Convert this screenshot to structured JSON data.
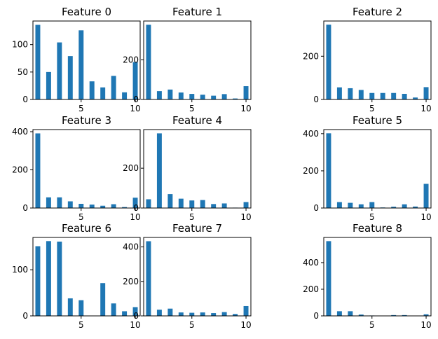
{
  "chart_data": [
    {
      "type": "bar",
      "title": "Feature 0",
      "xlabel": "",
      "ylabel": "",
      "x": [
        1,
        2,
        3,
        4,
        5,
        6,
        7,
        8,
        9,
        10
      ],
      "values": [
        136,
        50,
        104,
        79,
        126,
        33,
        22,
        43,
        13,
        68
      ],
      "xlim": [
        0.55,
        10.45
      ],
      "ylim": [
        0,
        143
      ],
      "xticks": [
        5,
        10
      ],
      "yticks": [
        0,
        50,
        100
      ],
      "grid": false
    },
    {
      "type": "bar",
      "title": "Feature 1",
      "xlabel": "",
      "ylabel": "",
      "x": [
        1,
        2,
        3,
        4,
        5,
        6,
        7,
        8,
        9,
        10
      ],
      "values": [
        377,
        42,
        50,
        35,
        28,
        24,
        19,
        27,
        5,
        67
      ],
      "xlim": [
        0.55,
        10.45
      ],
      "ylim": [
        0,
        396
      ],
      "xticks": [
        5,
        10
      ],
      "yticks": [
        0,
        200
      ],
      "grid": false
    },
    {
      "type": "bar",
      "title": "Feature 2",
      "xlabel": "",
      "ylabel": "",
      "x": [
        1,
        2,
        3,
        4,
        5,
        6,
        7,
        8,
        9,
        10
      ],
      "values": [
        346,
        56,
        52,
        44,
        30,
        30,
        30,
        26,
        9,
        57
      ],
      "xlim": [
        0.55,
        10.45
      ],
      "ylim": [
        0,
        363
      ],
      "xticks": [
        5,
        10
      ],
      "yticks": [
        0,
        200
      ],
      "grid": false
    },
    {
      "type": "bar",
      "title": "Feature 3",
      "xlabel": "",
      "ylabel": "",
      "x": [
        1,
        2,
        3,
        4,
        5,
        6,
        7,
        8,
        9,
        10
      ],
      "values": [
        391,
        56,
        56,
        35,
        22,
        18,
        12,
        20,
        5,
        54
      ],
      "xlim": [
        0.55,
        10.45
      ],
      "ylim": [
        0,
        411
      ],
      "xticks": [
        5,
        10
      ],
      "yticks": [
        0,
        200,
        400
      ],
      "grid": false
    },
    {
      "type": "bar",
      "title": "Feature 4",
      "xlabel": "",
      "ylabel": "",
      "x": [
        1,
        2,
        3,
        4,
        5,
        6,
        7,
        8,
        9,
        10
      ],
      "values": [
        44,
        375,
        70,
        47,
        38,
        40,
        20,
        23,
        2,
        30
      ],
      "xlim": [
        0.55,
        10.45
      ],
      "ylim": [
        0,
        394
      ],
      "xticks": [
        5,
        10
      ],
      "yticks": [
        0,
        200
      ],
      "grid": false
    },
    {
      "type": "bar",
      "title": "Feature 5",
      "xlabel": "",
      "ylabel": "",
      "x": [
        1,
        2,
        3,
        4,
        5,
        6,
        7,
        8,
        9,
        10
      ],
      "values": [
        402,
        32,
        28,
        20,
        32,
        3,
        7,
        20,
        8,
        130
      ],
      "xlim": [
        0.55,
        10.45
      ],
      "ylim": [
        0,
        422
      ],
      "xticks": [
        5,
        10
      ],
      "yticks": [
        0,
        200,
        400
      ],
      "grid": false
    },
    {
      "type": "bar",
      "title": "Feature 6",
      "xlabel": "",
      "ylabel": "",
      "x": [
        1,
        2,
        3,
        4,
        5,
        6,
        7,
        8,
        9,
        10
      ],
      "values": [
        151,
        162,
        161,
        38,
        34,
        0,
        71,
        27,
        10,
        19
      ],
      "xlim": [
        0.55,
        10.45
      ],
      "ylim": [
        0,
        170
      ],
      "xticks": [
        5,
        10
      ],
      "yticks": [
        0,
        100
      ],
      "grid": false
    },
    {
      "type": "bar",
      "title": "Feature 7",
      "xlabel": "",
      "ylabel": "",
      "x": [
        1,
        2,
        3,
        4,
        5,
        6,
        7,
        8,
        9,
        10
      ],
      "values": [
        433,
        36,
        42,
        20,
        18,
        20,
        16,
        22,
        11,
        57
      ],
      "xlim": [
        0.55,
        10.45
      ],
      "ylim": [
        0,
        455
      ],
      "xticks": [
        5,
        10
      ],
      "yticks": [
        0,
        200,
        400
      ],
      "grid": false
    },
    {
      "type": "bar",
      "title": "Feature 8",
      "xlabel": "",
      "ylabel": "",
      "x": [
        1,
        2,
        3,
        4,
        5,
        6,
        7,
        8,
        9,
        10
      ],
      "values": [
        561,
        35,
        35,
        10,
        3,
        2,
        6,
        6,
        2,
        12
      ],
      "xlim": [
        0.55,
        10.45
      ],
      "ylim": [
        0,
        589
      ],
      "xticks": [
        5,
        10
      ],
      "yticks": [
        0,
        200,
        400
      ],
      "grid": false
    }
  ]
}
